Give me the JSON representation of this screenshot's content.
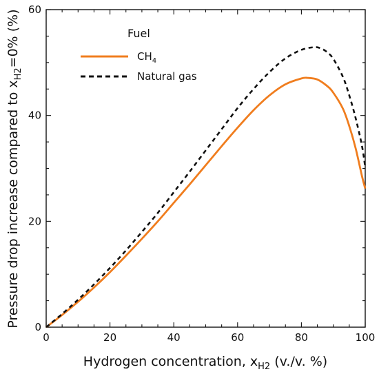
{
  "chart_data": {
    "type": "line",
    "xlabel": {
      "main": "Hydrogen concentration, x",
      "sub": "H2",
      "suffix": " (v./v. %)"
    },
    "ylabel": {
      "main": "Pressure drop increase compared to x",
      "sub": "H2",
      "suffix": "=0% (%)"
    },
    "xlim": [
      0,
      100
    ],
    "ylim": [
      0,
      60
    ],
    "xticks": [
      0,
      20,
      40,
      60,
      80,
      100
    ],
    "yticks": [
      0,
      20,
      40,
      60
    ],
    "grid": false,
    "legend": {
      "title": "Fuel",
      "placement": "top-left",
      "entries": [
        {
          "label_main": "CH",
          "label_sub": "4"
        },
        {
          "label_main": "Natural gas",
          "label_sub": ""
        }
      ]
    },
    "series": [
      {
        "color": "#f07d1e",
        "dash": "solid",
        "x": [
          0,
          5,
          10,
          15,
          20,
          25,
          30,
          35,
          40,
          45,
          50,
          55,
          60,
          65,
          70,
          75,
          80,
          82,
          85,
          88,
          90,
          93,
          95,
          97,
          99,
          100
        ],
        "y": [
          0,
          2.3,
          4.8,
          7.5,
          10.4,
          13.5,
          16.7,
          20.0,
          23.5,
          27.0,
          30.6,
          34.2,
          37.7,
          41.0,
          43.8,
          45.9,
          47.0,
          47.1,
          46.8,
          45.6,
          44.3,
          41.3,
          38.0,
          33.8,
          28.5,
          26.2
        ]
      },
      {
        "color": "#111111",
        "dash": "dashed",
        "x": [
          0,
          5,
          10,
          15,
          20,
          25,
          30,
          35,
          40,
          45,
          50,
          55,
          60,
          65,
          70,
          75,
          80,
          84,
          86,
          88,
          90,
          93,
          95,
          97,
          99,
          100
        ],
        "y": [
          0,
          2.5,
          5.2,
          8.1,
          11.2,
          14.5,
          18.0,
          21.6,
          25.5,
          29.4,
          33.4,
          37.4,
          41.4,
          45.0,
          48.2,
          50.8,
          52.4,
          52.9,
          52.7,
          52.0,
          50.7,
          47.3,
          43.8,
          39.5,
          34.2,
          30.2
        ]
      }
    ]
  }
}
